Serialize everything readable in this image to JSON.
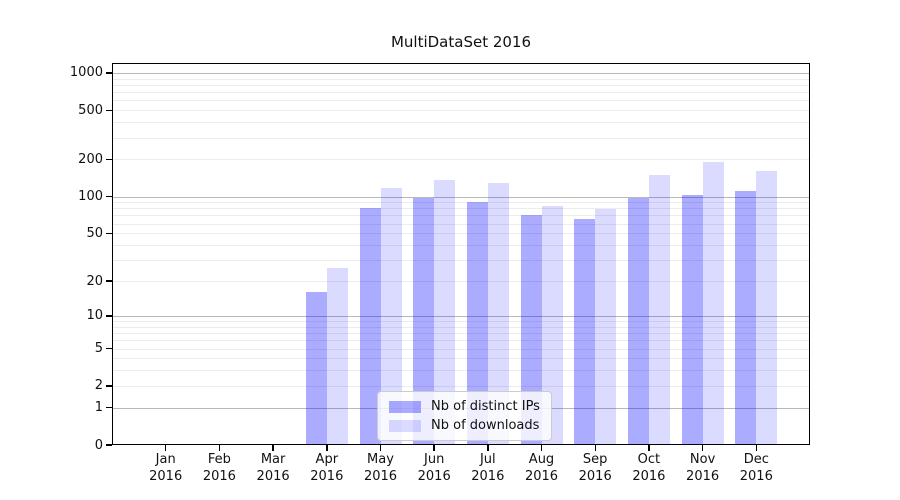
{
  "chart_data": {
    "type": "bar",
    "title": "MultiDataSet 2016",
    "x_categories": [
      "Jan",
      "Feb",
      "Mar",
      "Apr",
      "May",
      "Jun",
      "Jul",
      "Aug",
      "Sep",
      "Oct",
      "Nov",
      "Dec"
    ],
    "x_year": "2016",
    "xlabel": "",
    "ylabel": "",
    "y_scale": "log10(1+value)",
    "y_ticks": [
      0,
      1,
      2,
      5,
      10,
      20,
      50,
      100,
      200,
      500,
      1000
    ],
    "ylim": [
      0,
      1200
    ],
    "grid": true,
    "legend_position": "lower center",
    "series": [
      {
        "name": "Nb of distinct IPs",
        "color": "rgba(0,0,255,0.33)",
        "values": [
          0,
          0,
          0,
          16,
          80,
          97,
          90,
          71,
          66,
          98,
          102,
          111
        ]
      },
      {
        "name": "Nb of downloads",
        "color": "rgba(0,0,255,0.14)",
        "values": [
          0,
          0,
          0,
          26,
          118,
          136,
          128,
          83,
          79,
          150,
          190,
          162
        ]
      }
    ]
  },
  "colors": {
    "background": "#ffffff",
    "axis": "#000000",
    "grid_major": "#b8b8b8",
    "grid_minor": "#ececec",
    "text": "#111111",
    "legend_border": "#cccccc",
    "legend_background": "rgba(255,255,255,0.8)"
  }
}
